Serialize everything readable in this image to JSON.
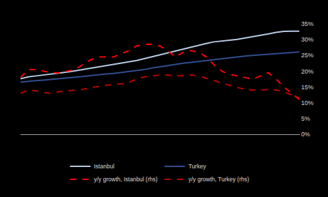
{
  "chart_data": {
    "type": "line",
    "categories": [
      null,
      null,
      null,
      null,
      null,
      null,
      null,
      null,
      null,
      null,
      null,
      null,
      null,
      null,
      null,
      null,
      null,
      null,
      null,
      null,
      null,
      null,
      null,
      null,
      null,
      null,
      null,
      null,
      null,
      null,
      null,
      null,
      null,
      null,
      null,
      null,
      null
    ],
    "series": [
      {
        "name": "Istanbul",
        "color": "#b8cce4",
        "line_style": "solid",
        "values": [
          17.6,
          18.2,
          18.5,
          18.8,
          19.0,
          19.3,
          19.7,
          20.1,
          20.5,
          21.0,
          21.4,
          21.8,
          22.1,
          22.5,
          23.0,
          23.4,
          24.0,
          24.6,
          25.3,
          25.8,
          26.4,
          27.0,
          27.6,
          28.2,
          28.8,
          29.3,
          29.5,
          29.8,
          30.1,
          30.5,
          31.0,
          31.4,
          31.8,
          32.3,
          32.6,
          32.7,
          32.7
        ]
      },
      {
        "name": "Turkey",
        "color": "#2f4f8f",
        "line_style": "solid",
        "values": [
          16.5,
          16.8,
          17.0,
          17.2,
          17.4,
          17.6,
          17.8,
          18.0,
          18.3,
          18.6,
          18.9,
          19.1,
          19.3,
          19.6,
          19.9,
          20.2,
          20.5,
          21.0,
          21.4,
          21.8,
          22.2,
          22.5,
          22.8,
          23.1,
          23.4,
          23.7,
          24.0,
          24.3,
          24.6,
          24.8,
          25.0,
          25.2,
          25.4,
          25.6,
          25.8,
          26.0,
          26.1
        ]
      },
      {
        "name": "y/y growth, Istanbul (rhs)",
        "color": "#ff0000",
        "line_style": "dashed",
        "values": [
          18.0,
          20.5,
          20.5,
          20.0,
          19.5,
          19.5,
          20.0,
          20.5,
          22.0,
          23.5,
          24.5,
          24.5,
          24.5,
          25.5,
          26.5,
          28.0,
          28.5,
          28.5,
          28.0,
          26.5,
          24.5,
          26.0,
          26.5,
          26.0,
          24.5,
          22.0,
          20.0,
          19.0,
          18.5,
          18.0,
          17.5,
          18.5,
          19.5,
          17.5,
          15.0,
          13.0,
          11.0
        ]
      },
      {
        "name": "y/y growth, Turkey (rhs)",
        "color": "#c00000",
        "line_style": "dashed",
        "values": [
          13.0,
          14.0,
          13.8,
          13.2,
          13.0,
          13.5,
          13.8,
          14.0,
          14.2,
          14.8,
          15.2,
          15.5,
          15.8,
          16.0,
          16.5,
          17.5,
          18.2,
          18.5,
          18.8,
          18.8,
          18.5,
          18.5,
          18.8,
          18.5,
          17.8,
          17.0,
          16.2,
          15.5,
          14.8,
          14.2,
          14.0,
          14.0,
          14.2,
          14.0,
          13.5,
          12.5,
          11.5
        ]
      }
    ],
    "ylim": [
      0,
      35
    ],
    "yticks": [
      {
        "value": 0,
        "label": "0%"
      },
      {
        "value": 5,
        "label": "5%"
      },
      {
        "value": 10,
        "label": "10%"
      },
      {
        "value": 15,
        "label": "15%"
      },
      {
        "value": 20,
        "label": "20%"
      },
      {
        "value": 25,
        "label": "25%"
      },
      {
        "value": 30,
        "label": "30%"
      },
      {
        "value": 35,
        "label": "35%"
      }
    ],
    "grid": false,
    "legend": "bottom",
    "tick_labels": "y"
  }
}
